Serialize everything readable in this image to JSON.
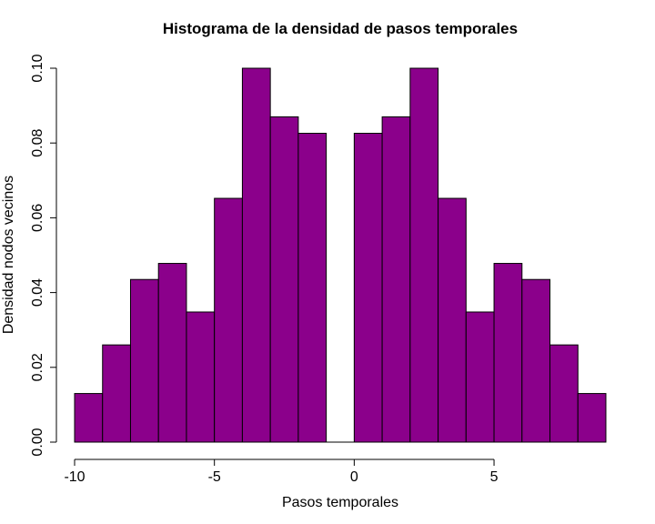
{
  "chart_data": {
    "type": "bar",
    "title": "Histograma de la densidad de pasos temporales",
    "xlabel": "Pasos temporales",
    "ylabel": "Densidad nodos vecinos",
    "bin_edges": [
      -10,
      -9,
      -8,
      -7,
      -6,
      -5,
      -4,
      -3,
      -2,
      -1,
      0,
      1,
      2,
      3,
      4,
      5,
      6,
      7,
      8,
      9
    ],
    "values": [
      0.013,
      0.026,
      0.0435,
      0.0478,
      0.0348,
      0.0652,
      0.1,
      0.087,
      0.0826,
      0.0,
      0.0826,
      0.087,
      0.1,
      0.0652,
      0.0348,
      0.0478,
      0.0435,
      0.026,
      0.013
    ],
    "xlim": [
      -10,
      9
    ],
    "ylim": [
      0,
      0.1
    ],
    "xticks": [
      -10,
      -5,
      0,
      5
    ],
    "xtick_labels": [
      "-10",
      "-5",
      "0",
      "5"
    ],
    "yticks": [
      0,
      0.02,
      0.04,
      0.06,
      0.08,
      0.1
    ],
    "ytick_labels": [
      "0.00",
      "0.02",
      "0.04",
      "0.06",
      "0.08",
      "0.10"
    ],
    "bar_color": "#8B008B",
    "grid": false
  }
}
